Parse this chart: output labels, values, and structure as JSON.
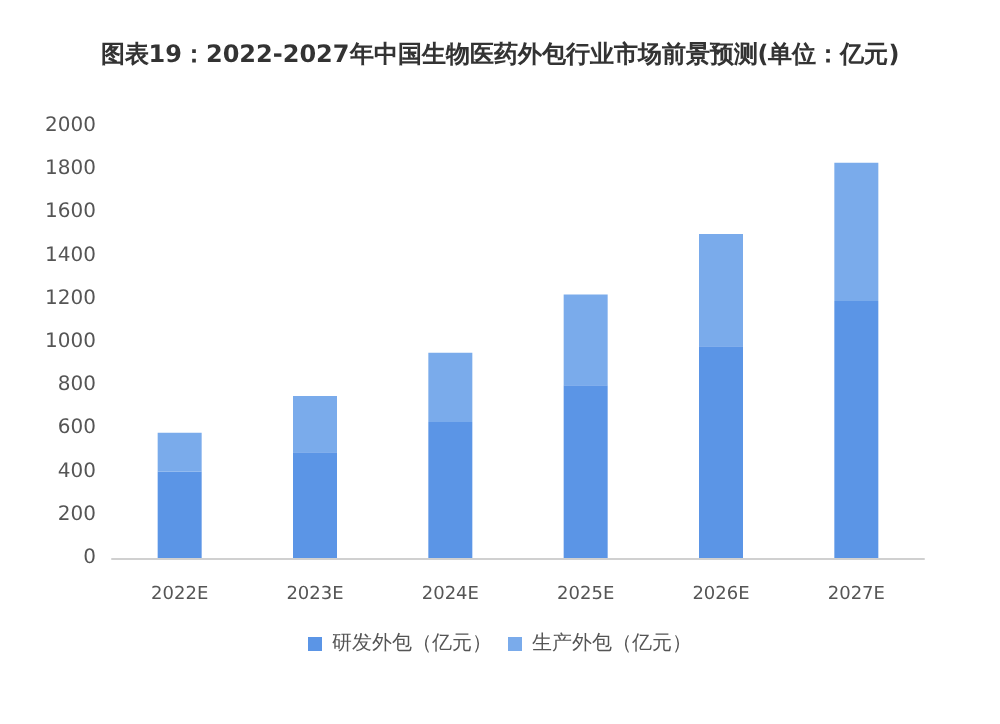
{
  "chart_data": {
    "type": "bar",
    "title": "图表19：2022-2027年中国生物医药外包行业市场前景预测(单位：亿元)",
    "categories": [
      "2022E",
      "2023E",
      "2024E",
      "2025E",
      "2026E",
      "2027E"
    ],
    "stacked": true,
    "series": [
      {
        "name": "研发外包（亿元）",
        "color": "#5b95e6",
        "values": [
          400,
          490,
          630,
          800,
          980,
          1190
        ]
      },
      {
        "name": "生产外包（亿元）",
        "color": "#7aabeb",
        "values": [
          180,
          260,
          320,
          420,
          520,
          640
        ]
      }
    ],
    "ylim": [
      0,
      2000
    ],
    "yticks": [
      0,
      200,
      400,
      600,
      800,
      1000,
      1200,
      1400,
      1600,
      1800,
      2000
    ],
    "grid": false,
    "legend": "bottom"
  }
}
